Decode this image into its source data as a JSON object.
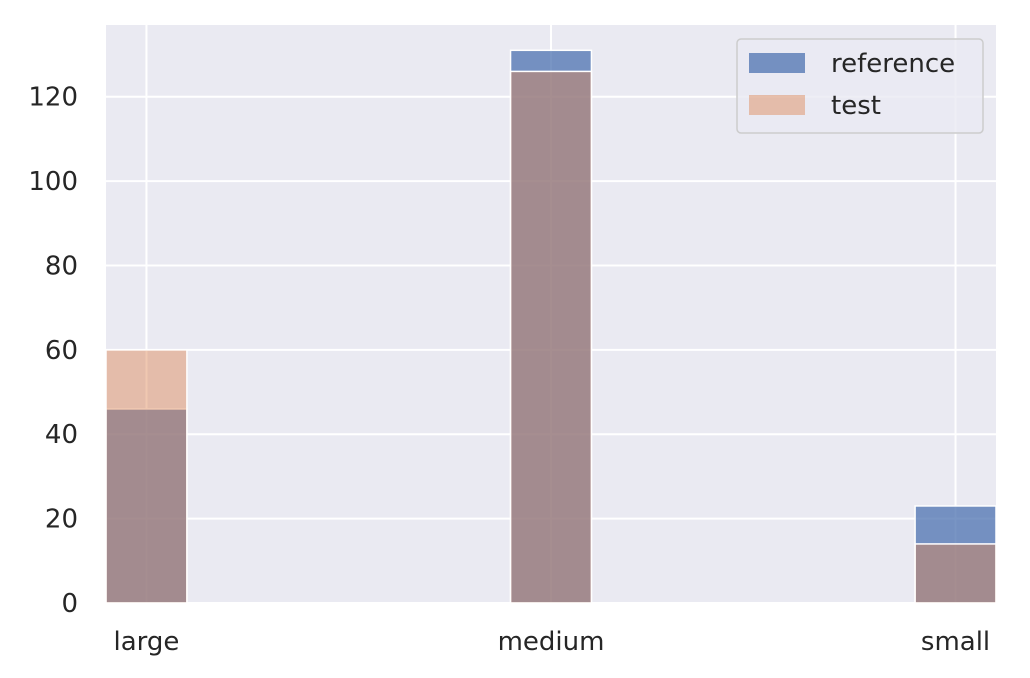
{
  "chart_data": {
    "type": "bar",
    "categories": [
      "large",
      "medium",
      "small"
    ],
    "series": [
      {
        "name": "reference",
        "values": [
          46,
          131,
          23
        ],
        "color": "#4c72b0",
        "opacity": 0.75
      },
      {
        "name": "test",
        "values": [
          60,
          126,
          14
        ],
        "color": "#dd8452",
        "opacity": 0.45
      }
    ],
    "ylim": [
      0,
      137
    ],
    "yticks": [
      0,
      20,
      40,
      60,
      80,
      100,
      120
    ],
    "ytick_labels": [
      "0",
      "20",
      "40",
      "60",
      "80",
      "100",
      "120"
    ],
    "xlim": [
      -0.1,
      2.1
    ],
    "grid": true,
    "background": "#eaeaf2",
    "grid_color": "#ffffff",
    "legend_position": "top-right"
  }
}
